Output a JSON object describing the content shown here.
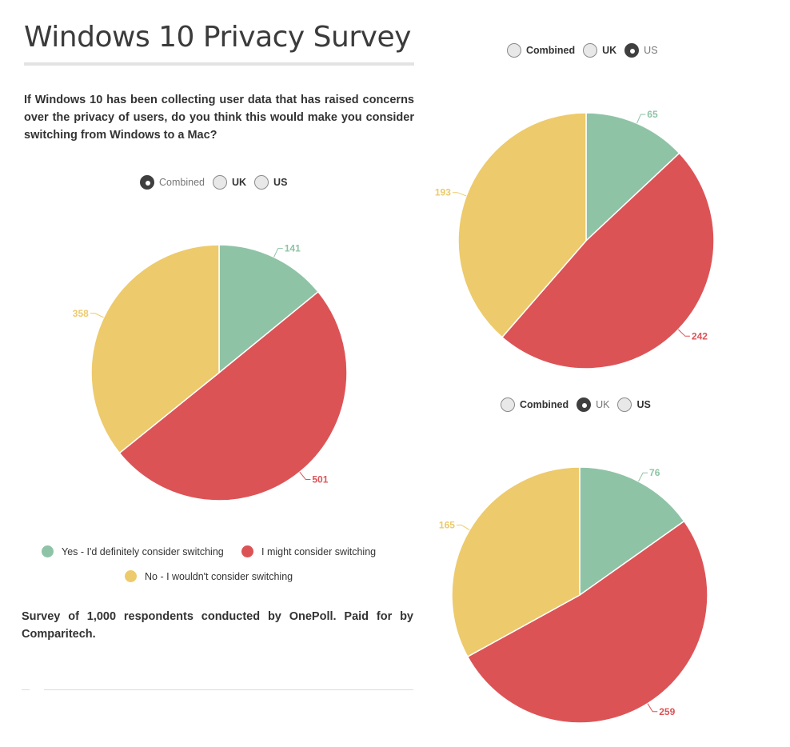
{
  "title": "Windows 10 Privacy Survey",
  "question": "If Windows 10 has been collecting user data that has raised concerns over the privacy of users, do you think this would make you consider switching from Windows to a Mac?",
  "footnote": "Survey of 1,000 respondents conducted by OnePoll. Paid for by Comparitech.",
  "radio_options": [
    "Combined",
    "UK",
    "US"
  ],
  "legend": [
    {
      "label": "Yes - I'd definitely consider switching",
      "color": "#8fc3a6"
    },
    {
      "label": "I might consider switching",
      "color": "#dc5356"
    },
    {
      "label": "No - I wouldn't consider switching",
      "color": "#edca6b"
    }
  ],
  "chart_data": [
    {
      "type": "pie",
      "selected": "Combined",
      "categories": [
        "Yes - I'd definitely consider switching",
        "I might consider switching",
        "No - I wouldn't consider switching"
      ],
      "values": [
        141,
        501,
        358
      ],
      "colors": [
        "#8fc3a6",
        "#dc5356",
        "#edca6b"
      ]
    },
    {
      "type": "pie",
      "selected": "US",
      "categories": [
        "Yes - I'd definitely consider switching",
        "I might consider switching",
        "No - I wouldn't consider switching"
      ],
      "values": [
        65,
        242,
        193
      ],
      "colors": [
        "#8fc3a6",
        "#dc5356",
        "#edca6b"
      ]
    },
    {
      "type": "pie",
      "selected": "UK",
      "categories": [
        "Yes - I'd definitely consider switching",
        "I might consider switching",
        "No - I wouldn't consider switching"
      ],
      "values": [
        76,
        259,
        165
      ],
      "colors": [
        "#8fc3a6",
        "#dc5356",
        "#edca6b"
      ]
    }
  ]
}
